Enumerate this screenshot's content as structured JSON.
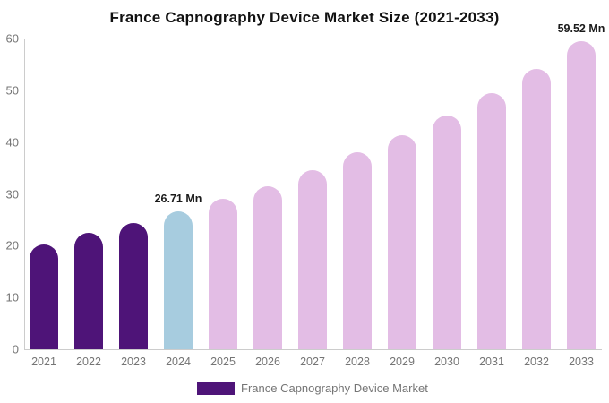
{
  "title": "France Capnography Device Market Size (2021-2033)",
  "legend": {
    "label": "France Capnography Device Market",
    "swatch_color": "#4e1478"
  },
  "colors": {
    "historical_bar": "#4e1478",
    "current_year_bar": "#a7ccdf",
    "forecast_bar": "#e3bde5",
    "axis_line": "#cccccc",
    "tick_text": "#757575",
    "annotation_text": "#1a1a1a"
  },
  "chart_data": {
    "type": "bar",
    "title": "France Capnography Device Market Size (2021-2033)",
    "categories": [
      "2021",
      "2022",
      "2023",
      "2024",
      "2025",
      "2026",
      "2027",
      "2028",
      "2029",
      "2030",
      "2031",
      "2032",
      "2033"
    ],
    "values": [
      20.3,
      22.4,
      24.4,
      26.71,
      29.1,
      31.4,
      34.5,
      38.0,
      41.3,
      45.2,
      49.4,
      54.1,
      59.52
    ],
    "unit": "Mn",
    "xlabel": "",
    "ylabel": "",
    "ylim": [
      0,
      60
    ],
    "yticks": [
      0,
      10,
      20,
      30,
      40,
      50,
      60
    ],
    "grid": false,
    "legend_position": "bottom",
    "legend_entries": [
      "France Capnography Device Market"
    ],
    "bar_colors": [
      "#4e1478",
      "#4e1478",
      "#4e1478",
      "#a7ccdf",
      "#e3bde5",
      "#e3bde5",
      "#e3bde5",
      "#e3bde5",
      "#e3bde5",
      "#e3bde5",
      "#e3bde5",
      "#e3bde5",
      "#e3bde5"
    ],
    "annotations": [
      {
        "category": "2024",
        "label": "26.71 Mn"
      },
      {
        "category": "2033",
        "label": "59.52 Mn"
      }
    ]
  }
}
